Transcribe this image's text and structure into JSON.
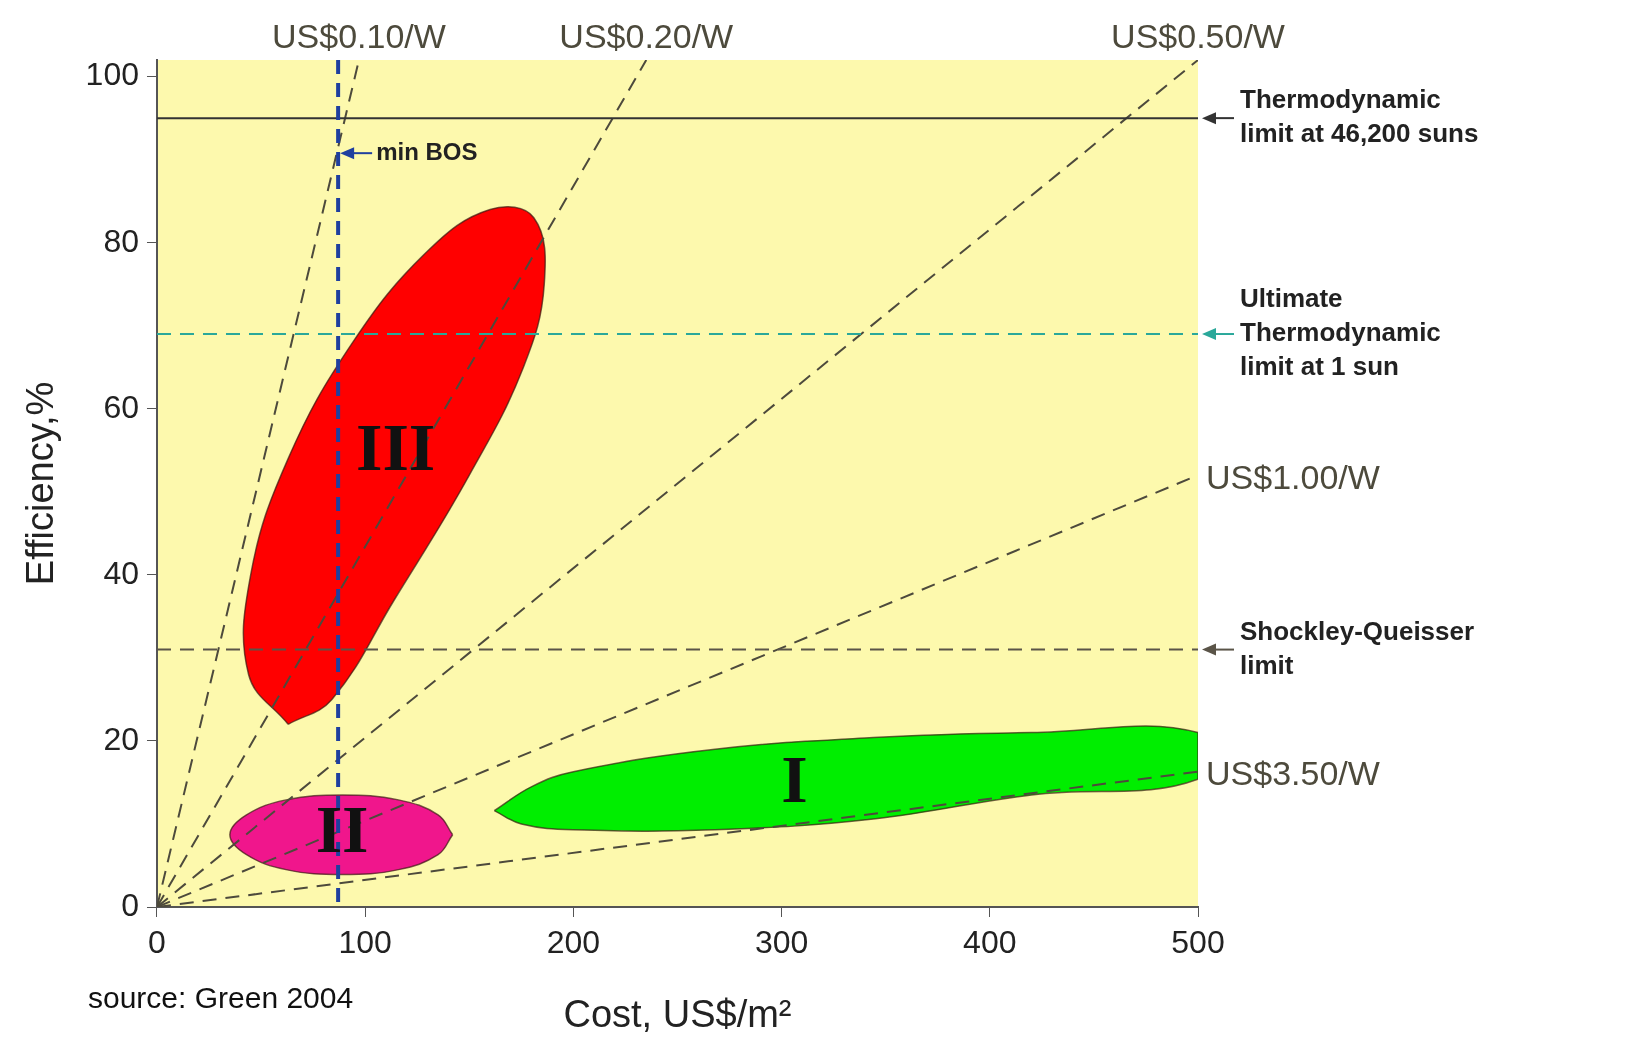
{
  "chart_data": {
    "type": "line",
    "xlabel": "Cost, US$/m²",
    "ylabel": "Efficiency,%",
    "xlim": [
      0,
      500
    ],
    "ylim": [
      0,
      102
    ],
    "xticks": [
      0,
      100,
      200,
      300,
      400,
      500
    ],
    "yticks": [
      0,
      20,
      40,
      60,
      80,
      100
    ],
    "grid": false,
    "legend": false,
    "line_style": "dashed",
    "series": [
      {
        "type": "area",
        "name": "III",
        "color": "#ff0000",
        "x": [
          63,
          44,
          45,
          63,
          94,
          130,
          160,
          181,
          186,
          176,
          150,
          114,
          84
        ],
        "values": [
          22,
          28,
          40,
          54,
          68,
          79,
          84,
          83,
          75,
          65,
          52,
          37,
          25
        ]
      },
      {
        "type": "area",
        "name": "II",
        "color": "#f0168c",
        "x": [
          142,
          135,
          116,
          89,
          62,
          43,
          35,
          43,
          62,
          89,
          116,
          135
        ],
        "values": [
          8.7,
          11.1,
          12.9,
          13.5,
          12.9,
          11.1,
          8.7,
          6.3,
          4.5,
          3.9,
          4.5,
          6.3
        ]
      },
      {
        "type": "area",
        "name": "I",
        "color": "#00ee00",
        "x": [
          162,
          180,
          200,
          268,
          344,
          420,
          500,
          500,
          420,
          344,
          268,
          200,
          175
        ],
        "values": [
          11.6,
          14.5,
          16.3,
          19,
          20.4,
          21,
          21,
          15.4,
          13.5,
          10.6,
          9.3,
          9.3,
          10
        ]
      },
      {
        "name": "US$0.10/W",
        "color": "#4d4a3c",
        "x": [
          0,
          97
        ],
        "values": [
          0,
          102
        ]
      },
      {
        "name": "US$0.20/W",
        "color": "#4d4a3c",
        "x": [
          0,
          235
        ],
        "values": [
          0,
          102
        ]
      },
      {
        "name": "US$0.50/W",
        "color": "#4d4a3c",
        "x": [
          0,
          500
        ],
        "values": [
          0,
          102
        ]
      },
      {
        "name": "US$1.00/W",
        "color": "#4d4a3c",
        "x": [
          0,
          500
        ],
        "values": [
          0,
          52
        ]
      },
      {
        "name": "US$3.50/W",
        "color": "#4d4a3c",
        "x": [
          0,
          500
        ],
        "values": [
          0,
          16.3
        ]
      }
    ],
    "ref_lines": [
      {
        "axis": "y",
        "value": 95,
        "label": "Thermodynamic limit at 46,200 suns",
        "color": "#333333",
        "line_style": "solid"
      },
      {
        "axis": "y",
        "value": 69,
        "label": "Ultimate Thermodynamic limit at 1 sun",
        "color": "#2aa89a",
        "line_style": "dashed"
      },
      {
        "axis": "y",
        "value": 31,
        "label": "Shockley-Queisser limit",
        "color": "#5a5448",
        "line_style": "dashed"
      },
      {
        "axis": "x",
        "value": 87,
        "label": "min BOS",
        "color": "#1f3f9f",
        "line_style": "dashed"
      }
    ],
    "annotations": [
      "source: Green 2004"
    ]
  }
}
